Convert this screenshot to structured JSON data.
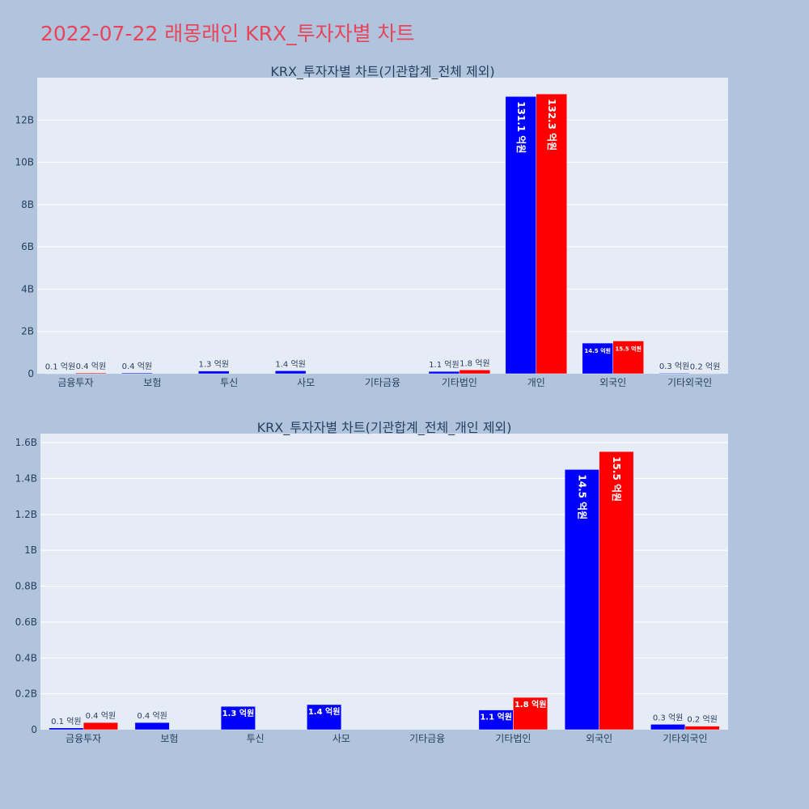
{
  "page_title": "2022-07-22 래몽래인 KRX_투자자별 차트",
  "colors": {
    "series_a": "#0000ff",
    "series_b": "#ff0000",
    "title": "#e8445a"
  },
  "chart_data": [
    {
      "type": "bar",
      "title": "KRX_투자자별 차트(기관합계_전체 제외)",
      "categories": [
        "금융투자",
        "보험",
        "투신",
        "사모",
        "기타금융",
        "기타법인",
        "개인",
        "외국인",
        "기타외국인"
      ],
      "ylim": [
        0,
        14000000000
      ],
      "yticks": [
        0,
        2000000000,
        4000000000,
        6000000000,
        8000000000,
        10000000000,
        12000000000
      ],
      "ytick_labels": [
        "0",
        "2B",
        "4B",
        "6B",
        "8B",
        "10B",
        "12B"
      ],
      "grid": true,
      "series": [
        {
          "color": "#0000ff",
          "values": [
            10000000,
            40000000,
            130000000,
            140000000,
            0,
            110000000,
            13110000000,
            1450000000,
            30000000
          ],
          "labels": [
            "0.1 억원",
            "0.4 억원",
            "1.3 억원",
            "1.4 억원",
            "",
            "1.1 억원",
            "131.1 억원",
            "14.5 억원",
            "0.3 억원"
          ]
        },
        {
          "color": "#ff0000",
          "values": [
            40000000,
            0,
            0,
            0,
            0,
            180000000,
            13230000000,
            1550000000,
            20000000
          ],
          "labels": [
            "0.4 억원",
            "",
            "",
            "",
            "",
            "1.8 억원",
            "132.3 억원",
            "15.5 억원",
            "0.2 억원"
          ]
        }
      ]
    },
    {
      "type": "bar",
      "title": "KRX_투자자별 차트(기관합계_전체_개인 제외)",
      "categories": [
        "금융투자",
        "보험",
        "투신",
        "사모",
        "기타금융",
        "기타법인",
        "외국인",
        "기타외국인"
      ],
      "ylim": [
        0,
        1650000000
      ],
      "yticks": [
        0,
        200000000,
        400000000,
        600000000,
        800000000,
        1000000000,
        1200000000,
        1400000000,
        1600000000
      ],
      "ytick_labels": [
        "0",
        "0.2B",
        "0.4B",
        "0.6B",
        "0.8B",
        "1B",
        "1.2B",
        "1.4B",
        "1.6B"
      ],
      "grid": true,
      "series": [
        {
          "color": "#0000ff",
          "values": [
            10000000,
            40000000,
            130000000,
            140000000,
            0,
            110000000,
            1450000000,
            30000000
          ],
          "labels": [
            "0.1 억원",
            "0.4 억원",
            "1.3 억원",
            "1.4 억원",
            "",
            "1.1 억원",
            "14.5 억원",
            "0.3 억원"
          ]
        },
        {
          "color": "#ff0000",
          "values": [
            40000000,
            0,
            0,
            0,
            0,
            180000000,
            1550000000,
            20000000
          ],
          "labels": [
            "0.4 억원",
            "",
            "",
            "",
            "",
            "1.8 억원",
            "15.5 억원",
            "0.2 억원"
          ]
        }
      ]
    }
  ]
}
